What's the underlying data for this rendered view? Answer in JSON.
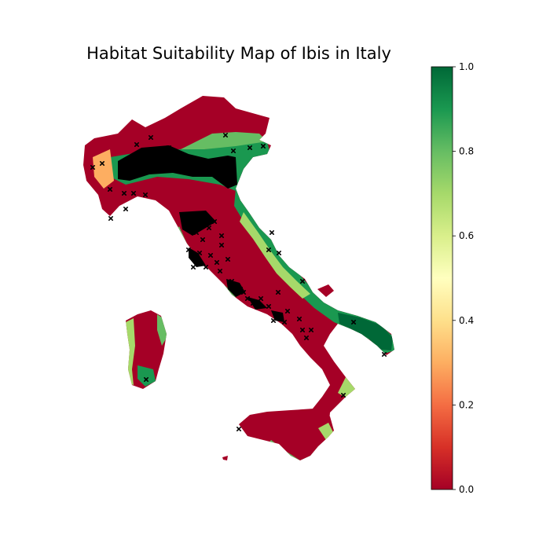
{
  "chart_data": {
    "type": "heatmap",
    "title": "Habitat Suitability Map of Ibis in Italy",
    "colormap": "RdYlGn",
    "colorbar": {
      "min": 0.0,
      "max": 1.0,
      "ticks": [
        "0.0",
        "0.2",
        "0.4",
        "0.6",
        "0.8",
        "1.0"
      ],
      "stops": [
        {
          "value": 0.0,
          "color": "#a50026"
        },
        {
          "value": 0.1,
          "color": "#d73027"
        },
        {
          "value": 0.2,
          "color": "#f46d43"
        },
        {
          "value": 0.3,
          "color": "#fdae61"
        },
        {
          "value": 0.4,
          "color": "#fee08b"
        },
        {
          "value": 0.5,
          "color": "#ffffbf"
        },
        {
          "value": 0.6,
          "color": "#d9ef8b"
        },
        {
          "value": 0.7,
          "color": "#a6d96a"
        },
        {
          "value": 0.8,
          "color": "#66bd63"
        },
        {
          "value": 0.9,
          "color": "#1a9850"
        },
        {
          "value": 1.0,
          "color": "#006837"
        }
      ]
    },
    "occurrence_marker": "x",
    "occurrence_color": "#000000",
    "axes_visible": false
  }
}
